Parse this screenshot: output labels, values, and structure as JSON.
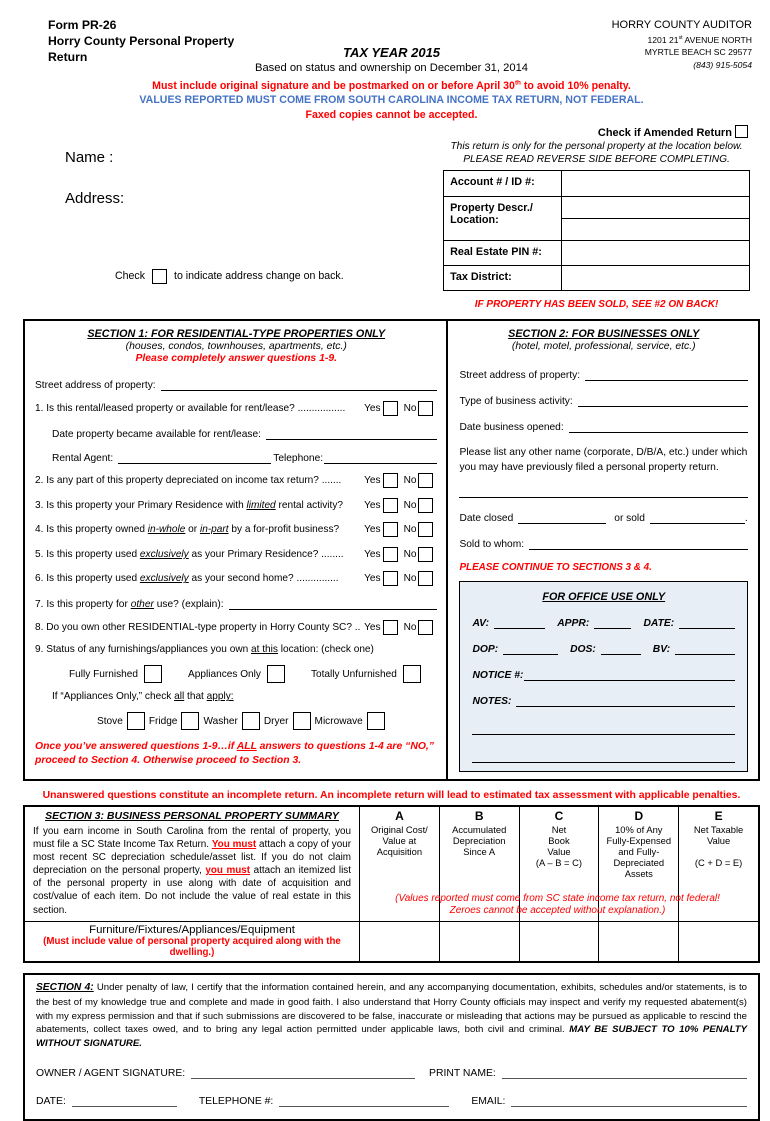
{
  "header": {
    "form_no": "Form PR-26",
    "form_title": "Horry County Personal Property Return",
    "tax_year": "TAX YEAR 2015",
    "based_on": "Based on status and ownership on December 31, 2014",
    "auditor_name": "HORRY COUNTY AUDITOR",
    "auditor_address1": [
      {
        "t": "1201 21"
      },
      {
        "t": "st",
        "cls": "sup"
      },
      {
        "t": " AVENUE NORTH"
      }
    ],
    "auditor_address2": "MYRTLE BEACH SC  29577",
    "auditor_phone": "(843) 915-5054",
    "notice_red1": [
      {
        "t": "Must include original signature and be postmarked on or before April 30"
      },
      {
        "t": "th",
        "cls": "sup"
      },
      {
        "t": " to avoid 10% penalty."
      }
    ],
    "notice_blue": "VALUES REPORTED MUST COME FROM SOUTH CAROLINA INCOME TAX RETURN, NOT FEDERAL.",
    "notice_red2": "Faxed copies cannot be accepted.",
    "amended_label": "Check if Amended Return"
  },
  "id_block": {
    "name_label": "Name :",
    "address_label": "Address:",
    "right_note1": "This return is only for the personal property at the location below.",
    "right_note2": "PLEASE READ REVERSE SIDE BEFORE COMPLETING.",
    "row1_label": "Account # / ID #:",
    "row2_label": "Property Descr./\nLocation:",
    "row3_label": "Real Estate PIN #:",
    "row4_label": "Tax District:",
    "address_change_pre": "Check",
    "address_change_post": "to indicate address change on back.",
    "sold_note": "IF PROPERTY HAS BEEN SOLD, SEE #2 ON BACK!"
  },
  "section1": {
    "title": "SECTION 1:  FOR RESIDENTIAL-TYPE  PROPERTIES ONLY",
    "subtitle": "(houses, condos, townhouses, apartments, etc.)",
    "instruction": "Please completely answer questions 1-9.",
    "street_label": "Street address of property:",
    "yes_label": "Yes",
    "no_label": "No",
    "q1": [
      {
        "t": "1. Is this rental/leased property or available for rent/lease? ................. "
      }
    ],
    "q1_sub1": "Date property became available for rent/lease:",
    "q1_sub2a": "Rental Agent:",
    "q1_sub2b": "Telephone:",
    "q2": [
      {
        "t": "2. Is any part of this property depreciated on income tax return? ....... "
      }
    ],
    "q3": [
      {
        "t": "3. Is this property your Primary Residence with "
      },
      {
        "t": "limited",
        "cls": "em"
      },
      {
        "t": " rental activity? "
      }
    ],
    "q4": [
      {
        "t": "4. Is this property owned "
      },
      {
        "t": "in-whole",
        "cls": "em"
      },
      {
        "t": " or "
      },
      {
        "t": "in-part",
        "cls": "em"
      },
      {
        "t": " by a for-profit business? "
      }
    ],
    "q5": [
      {
        "t": "5. Is this property used "
      },
      {
        "t": "exclusively",
        "cls": "em"
      },
      {
        "t": " as your Primary Residence? ........ "
      }
    ],
    "q6": [
      {
        "t": "6. Is this property used "
      },
      {
        "t": "exclusively",
        "cls": "em"
      },
      {
        "t": " as your second home? ............... "
      }
    ],
    "q7": [
      {
        "t": "7. Is this property for "
      },
      {
        "t": "other",
        "cls": "em"
      },
      {
        "t": " use? (explain): "
      }
    ],
    "q8": [
      {
        "t": "8. Do you own other RESIDENTIAL-type property in Horry County SC? .. "
      }
    ],
    "q9": [
      {
        "t": "9. Status of any furnishings/appliances you own "
      },
      {
        "t": "at this",
        "cls": "u"
      },
      {
        "t": " location:  (check one)"
      }
    ],
    "furnish_opts": [
      "Fully Furnished",
      "Appliances Only",
      "Totally Unfurnished"
    ],
    "appliances_intro": [
      {
        "t": "If “Appliances Only,” check "
      },
      {
        "t": "all",
        "cls": "u"
      },
      {
        "t": " that "
      },
      {
        "t": "apply:",
        "cls": "u"
      }
    ],
    "appliance_opts": [
      "Stove",
      "Fridge",
      "Washer",
      "Dryer",
      "Microwave"
    ],
    "note": [
      {
        "t": "Once you’ve answered questions 1-9…if "
      },
      {
        "t": "ALL",
        "cls": "u"
      },
      {
        "t": " answers to questions 1-4 are “NO,” proceed to Section 4.  Otherwise proceed to Section 3."
      }
    ]
  },
  "section2": {
    "title": "SECTION  2:  FOR BUSINESSES ONLY",
    "subtitle": "(hotel, motel, professional, service, etc.)",
    "field1": "Street address of property:",
    "field2": "Type of business activity:",
    "field3": "Date business opened:",
    "para": "Please list any other name (corporate, D/B/A, etc.) under which you may have previously filed a personal property return.",
    "closed_pre": "Date closed",
    "closed_mid": "or sold",
    "closed_end": ".",
    "sold_label": "Sold to whom:",
    "continue_note": "PLEASE CONTINUE TO SECTIONS 3 & 4."
  },
  "office": {
    "title": "FOR OFFICE USE ONLY",
    "av": "AV:",
    "appr": "APPR:",
    "date": "DATE:",
    "dop": "DOP:",
    "dos": "DOS:",
    "bv": "BV:",
    "notice": "NOTICE #:",
    "notes": "NOTES:"
  },
  "penalty_note": "Unanswered questions constitute an incomplete return.  An incomplete return will lead to estimated tax assessment with applicable penalties.",
  "section3": {
    "title": "SECTION 3:  BUSINESS PERSONAL PROPERTY SUMMARY",
    "para": [
      {
        "t": "If you earn income in South Carolina from the rental of property, you must file a SC State Income Tax Return.  "
      },
      {
        "t": "You must",
        "cls": "redu"
      },
      {
        "t": " attach a copy of your most recent SC depreciation schedule/asset list.  If you do not claim depreciation on the personal property, "
      },
      {
        "t": "you must",
        "cls": "redu"
      },
      {
        "t": " attach an itemized list of the personal property in use along with date of acquisition and cost/value of each item. Do not include the value of real estate in this section."
      }
    ],
    "columns": [
      {
        "letter": "A",
        "desc": "Original Cost/\nValue at\nAcquisition"
      },
      {
        "letter": "B",
        "desc": "Accumulated\nDepreciation\nSince A"
      },
      {
        "letter": "C",
        "desc": "Net\nBook\nValue\n(A – B = C)"
      },
      {
        "letter": "D",
        "desc": "10% of Any\nFully-Expensed\nand Fully-\nDepreciated\nAssets"
      },
      {
        "letter": "E",
        "desc": "Net Taxable\nValue\n \n(C + D = E)"
      }
    ],
    "values_note": "(Values reported must come from SC state income tax return, not federal!\nZeroes cannot be accepted without explanation.)",
    "row_label": "Furniture/Fixtures/Appliances/Equipment",
    "row_note": "(Must include value of personal property acquired along with the dwelling.)"
  },
  "section4": {
    "label": "SECTION 4:",
    "para": [
      {
        "t": "  Under penalty of law, I certify that the information contained herein, and any accompanying documentation, exhibits, schedules and/or statements, is to the best of my knowledge true and complete and made in good faith. I also understand that Horry County officials may inspect and verify my requested abatement(s) with my express permission and that if such submissions are discovered to be false, inaccurate or misleading that actions may be pursued as applicable to rescind the abatements, collect taxes owed, and to bring any legal action permitted under applicable laws, both civil and criminal.  "
      },
      {
        "t": "MAY BE SUBJECT TO 10% PENALTY WITHOUT SIGNATURE.",
        "cls": "seg-bi"
      }
    ],
    "sig_label": "OWNER / AGENT SIGNATURE:",
    "print_label": "PRINT NAME:",
    "date_label": "DATE:",
    "phone_label": "TELEPHONE #:",
    "email_label": "EMAIL:"
  }
}
